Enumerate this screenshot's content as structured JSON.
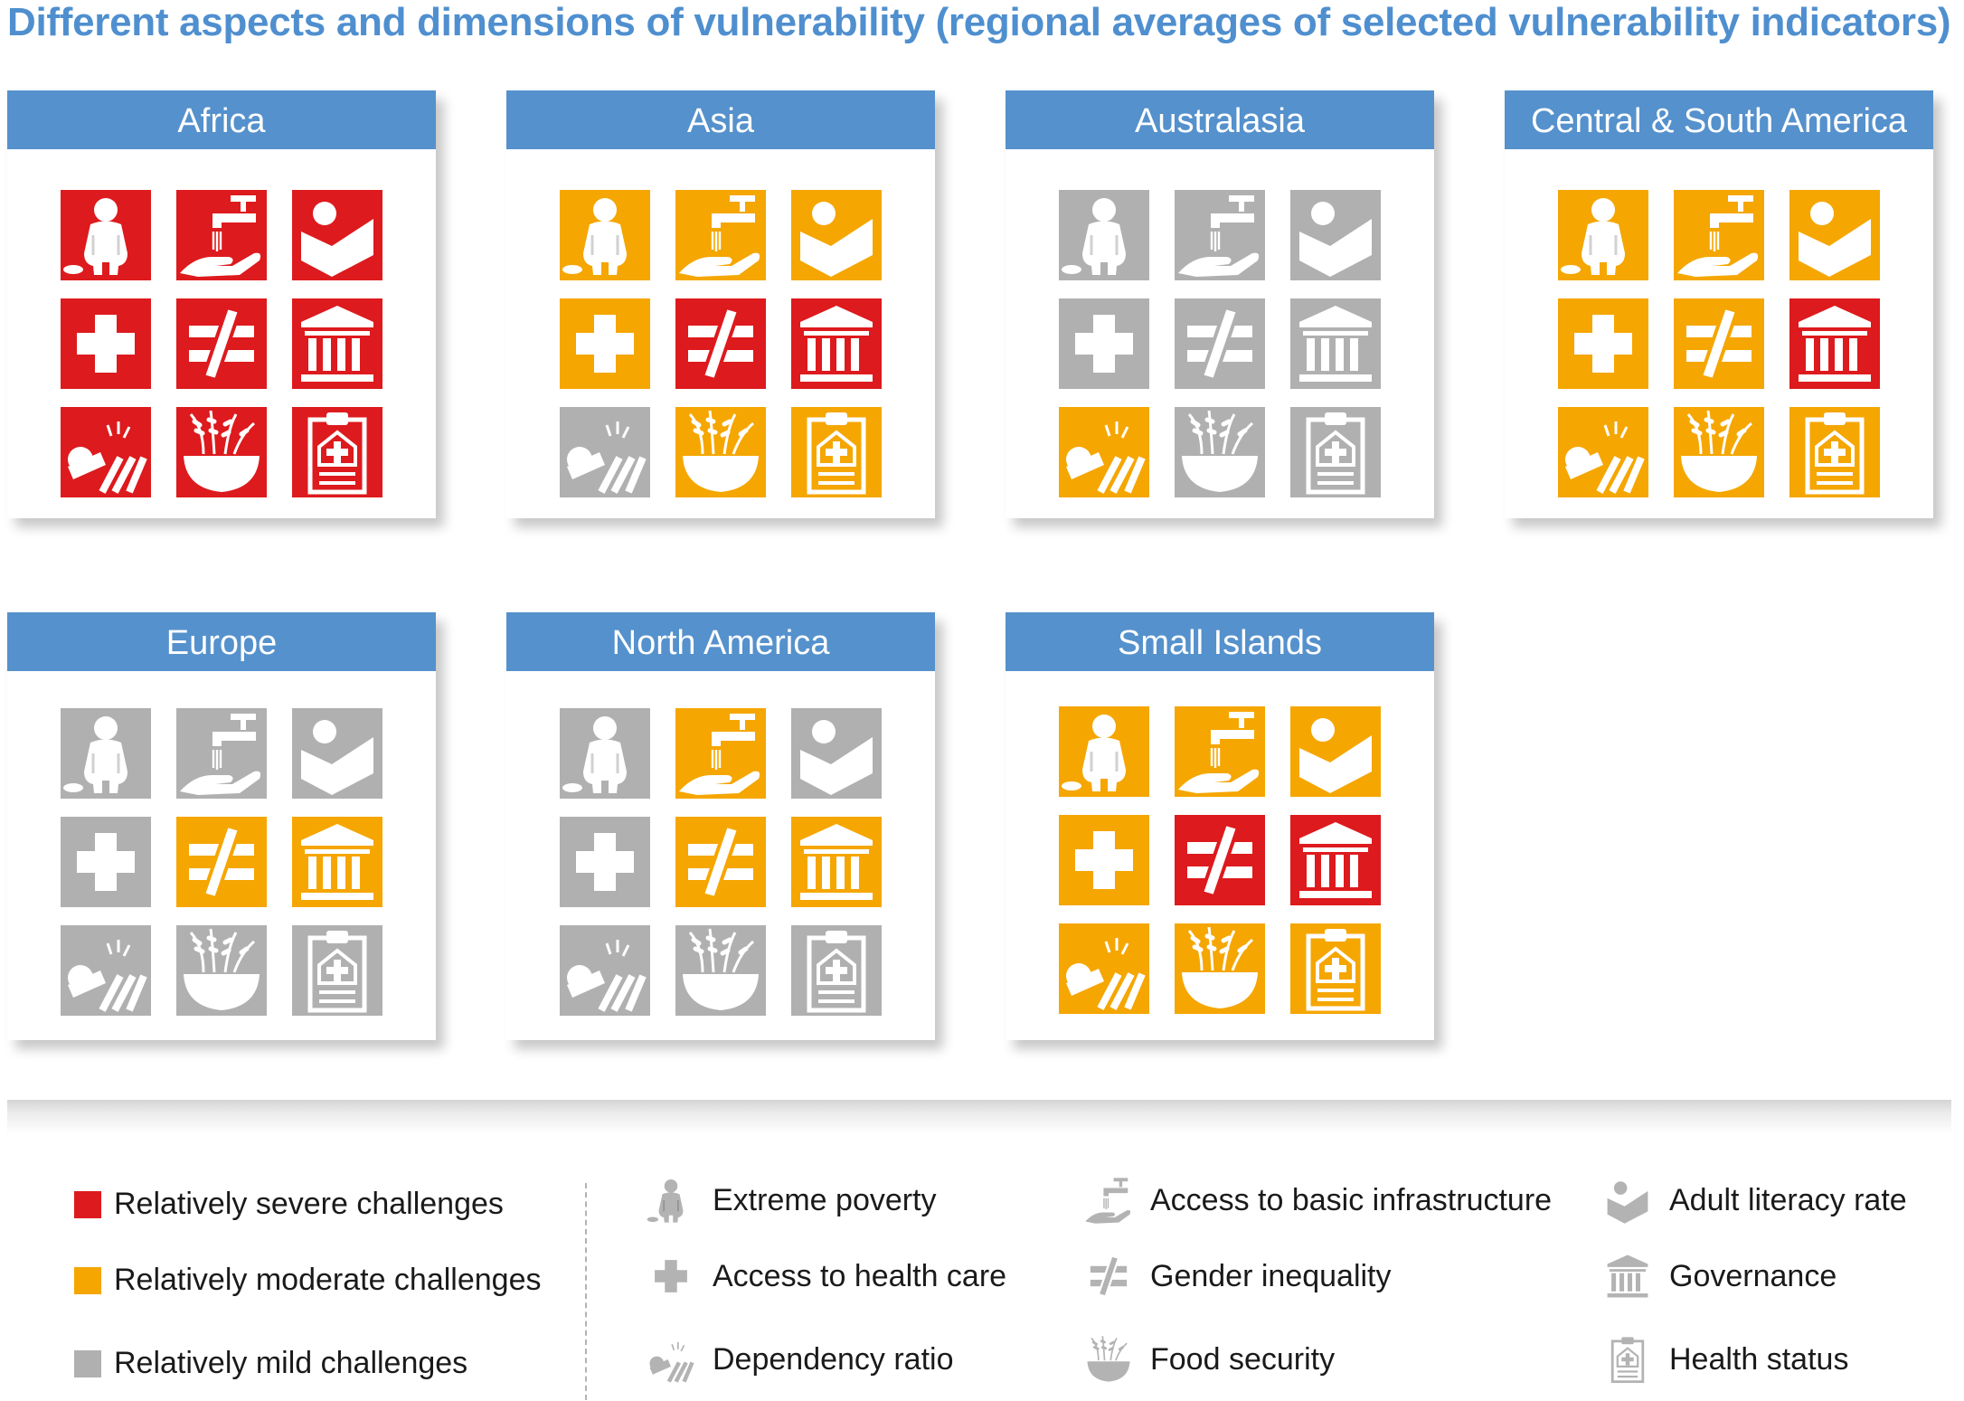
{
  "title": "Different aspects and dimensions of vulnerability (regional averages of selected vulnerability indicators)",
  "colors": {
    "severe": "#dd1a1d",
    "moderate": "#f5a600",
    "mild": "#b0b0b0",
    "header": "#5591cc",
    "title": "#4f8fcf"
  },
  "indicators": [
    {
      "id": "extreme_poverty",
      "label": "Extreme poverty",
      "icon": "poverty-icon"
    },
    {
      "id": "basic_infrastructure",
      "label": "Access to basic infrastructure",
      "icon": "tap-hand-icon"
    },
    {
      "id": "adult_literacy",
      "label": "Adult literacy rate",
      "icon": "literacy-book-icon"
    },
    {
      "id": "health_care",
      "label": "Access to health care",
      "icon": "medical-cross-icon"
    },
    {
      "id": "gender_inequality",
      "label": "Gender inequality",
      "icon": "not-equal-icon"
    },
    {
      "id": "governance",
      "label": "Governance",
      "icon": "government-building-icon"
    },
    {
      "id": "dependency_ratio",
      "label": "Dependency ratio",
      "icon": "dependency-icon"
    },
    {
      "id": "food_security",
      "label": "Food security",
      "icon": "grain-bowl-icon"
    },
    {
      "id": "health_status",
      "label": "Health status",
      "icon": "clipboard-health-icon"
    }
  ],
  "severity_legend": [
    {
      "id": "severe",
      "label": "Relatively severe challenges"
    },
    {
      "id": "moderate",
      "label": "Relatively moderate challenges"
    },
    {
      "id": "mild",
      "label": "Relatively mild challenges"
    }
  ],
  "regions": [
    {
      "name": "Africa",
      "ratings": [
        "severe",
        "severe",
        "severe",
        "severe",
        "severe",
        "severe",
        "severe",
        "severe",
        "severe"
      ]
    },
    {
      "name": "Asia",
      "ratings": [
        "moderate",
        "moderate",
        "moderate",
        "moderate",
        "severe",
        "severe",
        "mild",
        "moderate",
        "moderate"
      ]
    },
    {
      "name": "Australasia",
      "ratings": [
        "mild",
        "mild",
        "mild",
        "mild",
        "mild",
        "mild",
        "moderate",
        "mild",
        "mild"
      ]
    },
    {
      "name": "Central & South America",
      "ratings": [
        "moderate",
        "moderate",
        "moderate",
        "moderate",
        "moderate",
        "severe",
        "moderate",
        "moderate",
        "moderate"
      ]
    },
    {
      "name": "Europe",
      "ratings": [
        "mild",
        "mild",
        "mild",
        "mild",
        "moderate",
        "moderate",
        "mild",
        "mild",
        "mild"
      ]
    },
    {
      "name": "North America",
      "ratings": [
        "mild",
        "moderate",
        "mild",
        "mild",
        "moderate",
        "moderate",
        "mild",
        "mild",
        "mild"
      ]
    },
    {
      "name": "Small Islands",
      "ratings": [
        "moderate",
        "moderate",
        "moderate",
        "moderate",
        "severe",
        "severe",
        "moderate",
        "moderate",
        "moderate"
      ]
    }
  ]
}
